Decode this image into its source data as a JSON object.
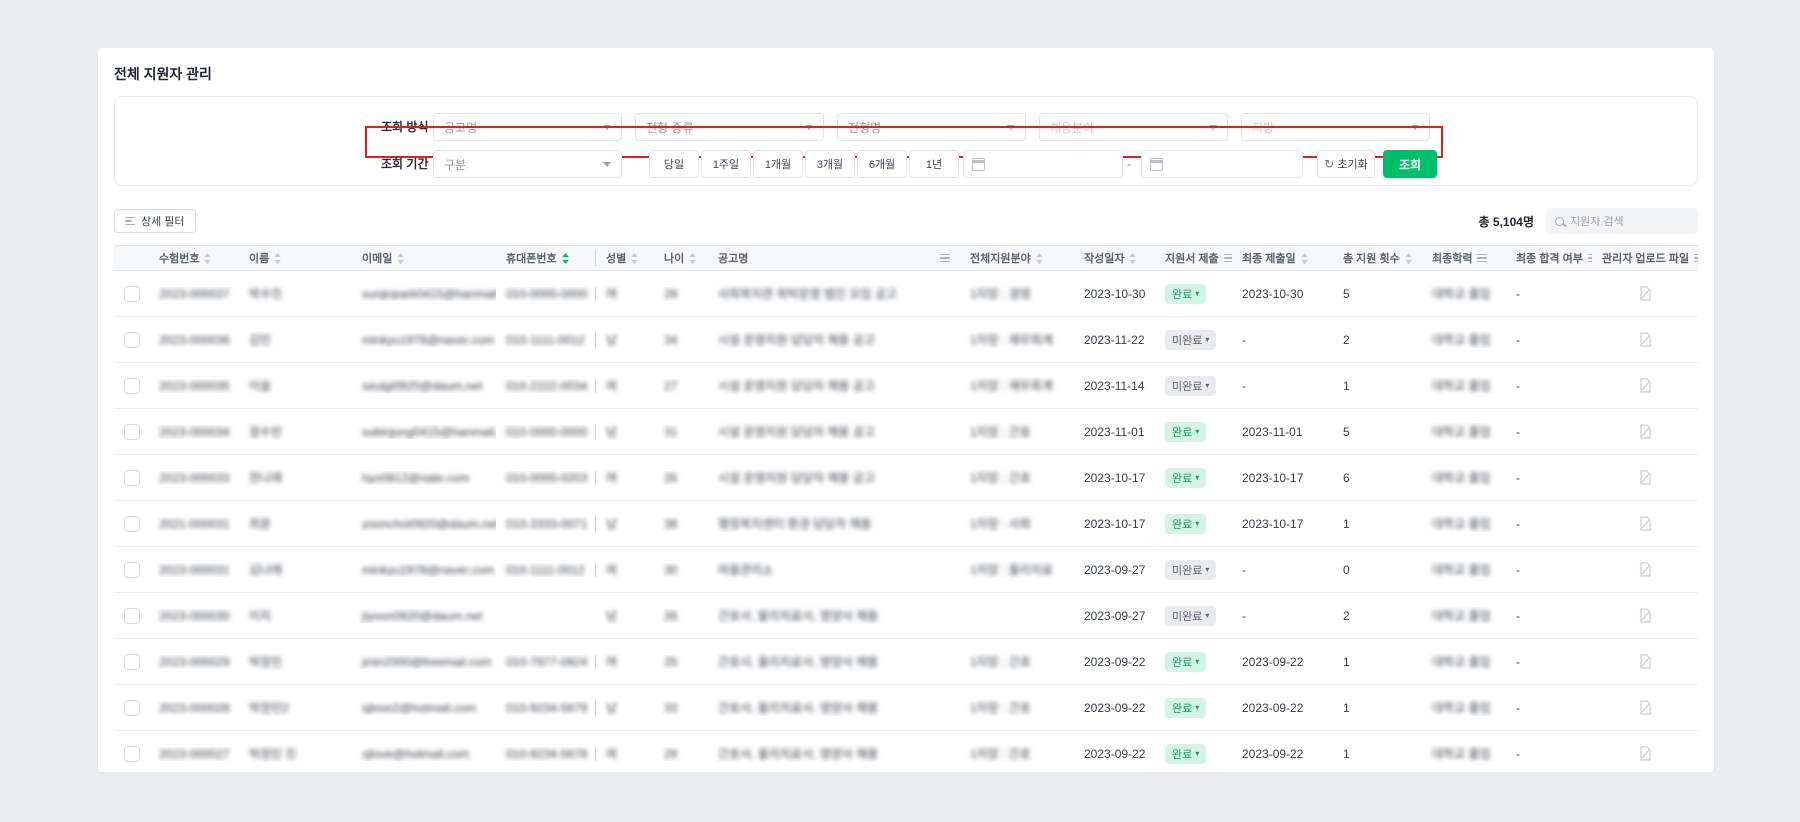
{
  "page": {
    "title": "전체 지원자 관리"
  },
  "filters": {
    "method_label": "조회 방식",
    "method_selects": [
      {
        "placeholder": "공고명"
      },
      {
        "placeholder": "전형 종류"
      },
      {
        "placeholder": "전형명"
      },
      {
        "placeholder": "채용분야"
      },
      {
        "placeholder": "지망"
      }
    ],
    "period_label": "조회 기간",
    "period_select_placeholder": "구분",
    "period_buttons": [
      "당일",
      "1주일",
      "1개월",
      "3개월",
      "6개월",
      "1년"
    ],
    "date_from_value": "",
    "date_separator": "-",
    "date_to_value": "",
    "reset_label": "초기화",
    "query_label": "조회"
  },
  "toolbar": {
    "detail_filter_label": "상세 필터",
    "total_count": "총 5,104명",
    "search_placeholder": "지원자 검색"
  },
  "table": {
    "badge_done": "완료",
    "badge_undone": "미완료",
    "columns": [
      {
        "key": "check",
        "label": "",
        "type": "checkbox"
      },
      {
        "key": "exam",
        "label": "수험번호",
        "icon": "sort",
        "blur": true
      },
      {
        "key": "name",
        "label": "이름",
        "icon": "sort",
        "blur": true
      },
      {
        "key": "email",
        "label": "이메일",
        "icon": "sort",
        "blur": true
      },
      {
        "key": "phone",
        "label": "휴대폰번호",
        "icon": "sort-active",
        "blur": true,
        "pinned_edge": true
      },
      {
        "key": "gender",
        "label": "성별",
        "icon": "sort",
        "blur": true
      },
      {
        "key": "age",
        "label": "나이",
        "icon": "sort",
        "blur": true
      },
      {
        "key": "posting",
        "label": "공고명",
        "icon": "filter",
        "blur": true
      },
      {
        "key": "fields",
        "label": "전체지원분야",
        "icon": "sort",
        "blur": true
      },
      {
        "key": "created",
        "label": "작성일자",
        "icon": "sort"
      },
      {
        "key": "submit",
        "label": "지원서 제출",
        "icon": "filter",
        "type": "badge"
      },
      {
        "key": "submitted_at",
        "label": "최종 제출일",
        "icon": "sort"
      },
      {
        "key": "apply_count",
        "label": "총 지원 횟수",
        "icon": "sort"
      },
      {
        "key": "education",
        "label": "최종학력",
        "icon": "filter",
        "blur": true
      },
      {
        "key": "final_pass",
        "label": "최종 합격 여부",
        "icon": "filter"
      },
      {
        "key": "admin_file",
        "label": "관리자 업로드 파일",
        "icon": "filter",
        "type": "file"
      }
    ],
    "rows": [
      {
        "exam": "2023-000037",
        "name": "박수진",
        "email": "sunjinpark0415@hanmail.net",
        "phone": "010-0000-0000",
        "gender": "여",
        "age": "29",
        "posting": "사회복지관 위탁운영 법인 모집 공고",
        "fields": "1지망 : 경영",
        "created": "2023-10-30",
        "submit": "완료",
        "submitted_at": "2023-10-30",
        "apply_count": "5",
        "education": "대학교 졸업",
        "final_pass": "-"
      },
      {
        "exam": "2023-000036",
        "name": "김민",
        "email": "minkyu1978@naver.com",
        "phone": "010-1111-0012",
        "gender": "남",
        "age": "34",
        "posting": "시설 운영지원 담당자 채용 공고",
        "fields": "1지망 : 재무회계",
        "created": "2023-11-22",
        "submit": "미완료",
        "submitted_at": "-",
        "apply_count": "2",
        "education": "대학교 졸업",
        "final_pass": "-"
      },
      {
        "exam": "2023-000035",
        "name": "이슬",
        "email": "seulgi0920@daum.net",
        "phone": "010-2222-0034",
        "gender": "여",
        "age": "27",
        "posting": "시설 운영지원 담당자 채용 공고",
        "fields": "1지망 : 재무회계",
        "created": "2023-11-14",
        "submit": "미완료",
        "submitted_at": "-",
        "apply_count": "1",
        "education": "대학교 졸업",
        "final_pass": "-"
      },
      {
        "exam": "2023-000034",
        "name": "정수빈",
        "email": "subinjung0415@hanmail.net",
        "phone": "010-0000-0000",
        "gender": "남",
        "age": "31",
        "posting": "시설 운영지원 담당자 채용 공고",
        "fields": "1지망 : 간호",
        "created": "2023-11-01",
        "submit": "완료",
        "submitted_at": "2023-11-01",
        "apply_count": "5",
        "education": "대학교 졸업",
        "final_pass": "-"
      },
      {
        "exam": "2023-000033",
        "name": "한나래",
        "email": "hyo0812@nate.com",
        "phone": "010-0000-0203",
        "gender": "여",
        "age": "26",
        "posting": "시설 운영지원 담당자 채용 공고",
        "fields": "1지망 : 간호",
        "created": "2023-10-17",
        "submit": "완료",
        "submitted_at": "2023-10-17",
        "apply_count": "6",
        "education": "대학교 졸업",
        "final_pass": "-"
      },
      {
        "exam": "2021-000031",
        "name": "최윤",
        "email": "yoonchoi0920@daum.net",
        "phone": "010-3333-0071",
        "gender": "남",
        "age": "38",
        "posting": "행정복지센터 환경 담당자 채용",
        "fields": "1지망 : 사회",
        "created": "2023-10-17",
        "submit": "완료",
        "submitted_at": "2023-10-17",
        "apply_count": "1",
        "education": "대학교 졸업",
        "final_pass": "-"
      },
      {
        "exam": "2023-000031",
        "name": "김나래",
        "email": "minkyu1978@naver.com",
        "phone": "010-1111-0012",
        "gender": "여",
        "age": "30",
        "posting": "마을관리소",
        "fields": "1지망 : 물리치료",
        "created": "2023-09-27",
        "submit": "미완료",
        "submitted_at": "-",
        "apply_count": "0",
        "education": "대학교 졸업",
        "final_pass": "-"
      },
      {
        "exam": "2023-000030",
        "name": "이지",
        "email": "jiyoon0920@daum.net",
        "phone": "",
        "gender": "남",
        "age": "28",
        "posting": "간호사, 물리치료사, 영양사 채용",
        "fields": "",
        "created": "2023-09-27",
        "submit": "미완료",
        "submitted_at": "-",
        "apply_count": "2",
        "education": "대학교 졸업",
        "final_pass": "-"
      },
      {
        "exam": "2023-000029",
        "name": "박정민",
        "email": "jmin2000@freemail.com",
        "phone": "010-7977-0924",
        "gender": "여",
        "age": "25",
        "posting": "간호사, 물리치료사, 영양사 채용",
        "fields": "1지망 : 간호",
        "created": "2023-09-22",
        "submit": "완료",
        "submitted_at": "2023-09-22",
        "apply_count": "1",
        "education": "대학교 졸업",
        "final_pass": "-"
      },
      {
        "exam": "2023-000028",
        "name": "박정민2",
        "email": "sjlove2@hotmail.com",
        "phone": "010-9234-5679",
        "gender": "남",
        "age": "33",
        "posting": "간호사, 물리치료사, 영양사 채용",
        "fields": "1지망 : 간호",
        "created": "2023-09-22",
        "submit": "완료",
        "submitted_at": "2023-09-22",
        "apply_count": "1",
        "education": "대학교 졸업",
        "final_pass": "-"
      },
      {
        "exam": "2023-000027",
        "name": "박정민 친",
        "email": "sjlove@hotmail.com",
        "phone": "010-9234-5678",
        "gender": "여",
        "age": "29",
        "posting": "간호사, 물리치료사, 영양사 채용",
        "fields": "1지망 : 간호",
        "created": "2023-09-22",
        "submit": "완료",
        "submitted_at": "2023-09-22",
        "apply_count": "1",
        "education": "대학교 졸업",
        "final_pass": "-"
      }
    ]
  },
  "colors": {
    "accent_green": "#00bf6b",
    "annotation_red": "#e1201e",
    "badge_done_bg": "#d5f3e4",
    "badge_done_text": "#0ca35e",
    "badge_undone_bg": "#e9ebef",
    "badge_undone_text": "#596170",
    "sort_inactive": "#c7ccd3"
  }
}
